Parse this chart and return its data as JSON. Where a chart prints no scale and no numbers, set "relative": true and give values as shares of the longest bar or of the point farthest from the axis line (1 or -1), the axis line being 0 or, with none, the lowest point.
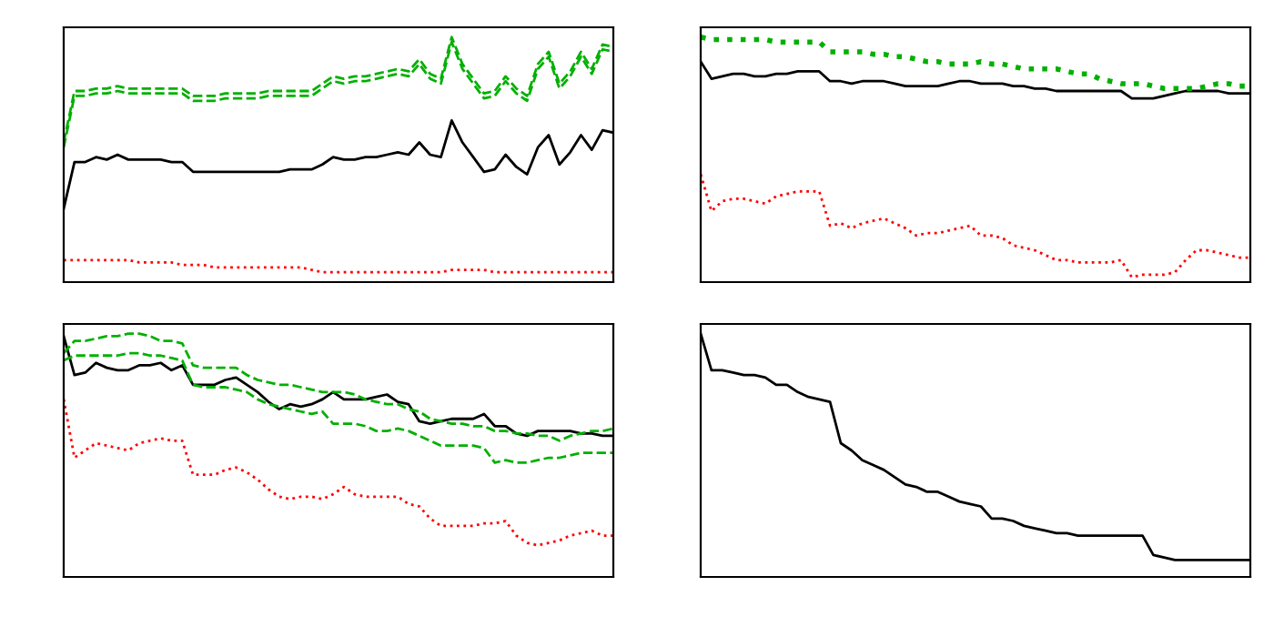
{
  "chart_data": [
    {
      "type": "line",
      "relative": true,
      "legend": false,
      "tick_labels": false,
      "categories": [
        null,
        null,
        null,
        null,
        null,
        null,
        null,
        null,
        null,
        null,
        null,
        null,
        null,
        null,
        null,
        null,
        null,
        null,
        null,
        null,
        null,
        null,
        null,
        null,
        null,
        null,
        null,
        null,
        null,
        null,
        null,
        null,
        null,
        null,
        null,
        null,
        null,
        null,
        null,
        null,
        null,
        null,
        null,
        null,
        null,
        null,
        null,
        null,
        null,
        null,
        null,
        null
      ],
      "series": [
        {
          "color": "#000000",
          "line_style": "solid",
          "values": [
            0.3,
            0.49,
            0.49,
            0.51,
            0.5,
            0.52,
            0.5,
            0.5,
            0.5,
            0.5,
            0.49,
            0.49,
            0.45,
            0.45,
            0.45,
            0.45,
            0.45,
            0.45,
            0.45,
            0.45,
            0.45,
            0.46,
            0.46,
            0.46,
            0.48,
            0.51,
            0.5,
            0.5,
            0.51,
            0.51,
            0.52,
            0.53,
            0.52,
            0.57,
            0.52,
            0.51,
            0.66,
            0.57,
            0.51,
            0.45,
            0.46,
            0.52,
            0.47,
            0.44,
            0.55,
            0.6,
            0.48,
            0.53,
            0.6,
            0.54,
            0.62,
            0.61
          ]
        },
        {
          "color": "#00b000",
          "line_style": "dashed",
          "values": [
            0.57,
            0.78,
            0.78,
            0.79,
            0.79,
            0.8,
            0.79,
            0.79,
            0.79,
            0.79,
            0.79,
            0.79,
            0.76,
            0.76,
            0.76,
            0.77,
            0.77,
            0.77,
            0.77,
            0.78,
            0.78,
            0.78,
            0.78,
            0.78,
            0.81,
            0.84,
            0.83,
            0.84,
            0.84,
            0.85,
            0.86,
            0.87,
            0.86,
            0.91,
            0.85,
            0.83,
            1.0,
            0.89,
            0.83,
            0.77,
            0.78,
            0.84,
            0.79,
            0.76,
            0.89,
            0.94,
            0.81,
            0.86,
            0.94,
            0.87,
            0.97,
            0.96
          ]
        },
        {
          "color": "#00b000",
          "line_style": "dashed",
          "values": [
            0.55,
            0.76,
            0.76,
            0.77,
            0.77,
            0.78,
            0.77,
            0.77,
            0.77,
            0.77,
            0.77,
            0.77,
            0.74,
            0.74,
            0.74,
            0.75,
            0.75,
            0.75,
            0.75,
            0.76,
            0.76,
            0.76,
            0.76,
            0.76,
            0.79,
            0.82,
            0.81,
            0.82,
            0.82,
            0.83,
            0.84,
            0.85,
            0.84,
            0.89,
            0.83,
            0.81,
            0.98,
            0.87,
            0.81,
            0.75,
            0.76,
            0.82,
            0.77,
            0.74,
            0.87,
            0.92,
            0.79,
            0.84,
            0.92,
            0.85,
            0.95,
            0.94
          ]
        },
        {
          "color": "#ff0000",
          "line_style": "dotted",
          "values": [
            0.09,
            0.09,
            0.09,
            0.09,
            0.09,
            0.09,
            0.09,
            0.08,
            0.08,
            0.08,
            0.08,
            0.07,
            0.07,
            0.07,
            0.06,
            0.06,
            0.06,
            0.06,
            0.06,
            0.06,
            0.06,
            0.06,
            0.06,
            0.05,
            0.04,
            0.04,
            0.04,
            0.04,
            0.04,
            0.04,
            0.04,
            0.04,
            0.04,
            0.04,
            0.04,
            0.04,
            0.05,
            0.05,
            0.05,
            0.05,
            0.04,
            0.04,
            0.04,
            0.04,
            0.04,
            0.04,
            0.04,
            0.04,
            0.04,
            0.04,
            0.04,
            0.04
          ]
        }
      ]
    },
    {
      "type": "line",
      "relative": true,
      "legend": false,
      "tick_labels": false,
      "categories": [
        null,
        null,
        null,
        null,
        null,
        null,
        null,
        null,
        null,
        null,
        null,
        null,
        null,
        null,
        null,
        null,
        null,
        null,
        null,
        null,
        null,
        null,
        null,
        null,
        null,
        null,
        null,
        null,
        null,
        null,
        null,
        null,
        null,
        null,
        null,
        null,
        null,
        null,
        null,
        null,
        null,
        null,
        null,
        null,
        null,
        null,
        null,
        null,
        null,
        null,
        null,
        null
      ],
      "series": [
        {
          "color": "#000000",
          "line_style": "solid",
          "values": [
            0.9,
            0.83,
            0.84,
            0.85,
            0.85,
            0.84,
            0.84,
            0.85,
            0.85,
            0.86,
            0.86,
            0.86,
            0.82,
            0.82,
            0.81,
            0.82,
            0.82,
            0.82,
            0.81,
            0.8,
            0.8,
            0.8,
            0.8,
            0.81,
            0.82,
            0.82,
            0.81,
            0.81,
            0.81,
            0.8,
            0.8,
            0.79,
            0.79,
            0.78,
            0.78,
            0.78,
            0.78,
            0.78,
            0.78,
            0.78,
            0.75,
            0.75,
            0.75,
            0.76,
            0.77,
            0.78,
            0.78,
            0.78,
            0.78,
            0.77,
            0.77,
            0.77
          ]
        },
        {
          "color": "#00b000",
          "line_style": "dotted",
          "values": [
            1.0,
            0.99,
            0.99,
            0.99,
            0.99,
            0.99,
            0.99,
            0.98,
            0.98,
            0.98,
            0.98,
            0.98,
            0.94,
            0.94,
            0.94,
            0.94,
            0.93,
            0.93,
            0.92,
            0.92,
            0.91,
            0.9,
            0.9,
            0.89,
            0.89,
            0.89,
            0.9,
            0.89,
            0.89,
            0.88,
            0.87,
            0.87,
            0.87,
            0.87,
            0.86,
            0.85,
            0.85,
            0.83,
            0.82,
            0.81,
            0.81,
            0.81,
            0.8,
            0.79,
            0.79,
            0.79,
            0.79,
            0.8,
            0.81,
            0.81,
            0.8,
            0.8
          ]
        },
        {
          "color": "#ff0000",
          "line_style": "dotted",
          "values": [
            0.44,
            0.29,
            0.33,
            0.34,
            0.34,
            0.33,
            0.32,
            0.35,
            0.36,
            0.37,
            0.37,
            0.37,
            0.23,
            0.24,
            0.22,
            0.24,
            0.25,
            0.26,
            0.24,
            0.22,
            0.19,
            0.2,
            0.2,
            0.21,
            0.22,
            0.23,
            0.19,
            0.19,
            0.18,
            0.15,
            0.14,
            0.13,
            0.11,
            0.09,
            0.09,
            0.08,
            0.08,
            0.08,
            0.08,
            0.09,
            0.02,
            0.03,
            0.03,
            0.03,
            0.04,
            0.09,
            0.13,
            0.13,
            0.12,
            0.11,
            0.1,
            0.1
          ]
        }
      ]
    },
    {
      "type": "line",
      "relative": true,
      "legend": false,
      "tick_labels": false,
      "categories": [
        null,
        null,
        null,
        null,
        null,
        null,
        null,
        null,
        null,
        null,
        null,
        null,
        null,
        null,
        null,
        null,
        null,
        null,
        null,
        null,
        null,
        null,
        null,
        null,
        null,
        null,
        null,
        null,
        null,
        null,
        null,
        null,
        null,
        null,
        null,
        null,
        null,
        null,
        null,
        null,
        null,
        null,
        null,
        null,
        null,
        null,
        null,
        null,
        null,
        null,
        null,
        null
      ],
      "series": [
        {
          "color": "#000000",
          "line_style": "solid",
          "values": [
            0.99,
            0.83,
            0.84,
            0.88,
            0.86,
            0.85,
            0.85,
            0.87,
            0.87,
            0.88,
            0.85,
            0.87,
            0.79,
            0.79,
            0.79,
            0.81,
            0.82,
            0.79,
            0.76,
            0.72,
            0.69,
            0.71,
            0.7,
            0.71,
            0.73,
            0.76,
            0.73,
            0.73,
            0.73,
            0.74,
            0.75,
            0.72,
            0.71,
            0.64,
            0.63,
            0.64,
            0.65,
            0.65,
            0.65,
            0.67,
            0.62,
            0.62,
            0.59,
            0.58,
            0.6,
            0.6,
            0.6,
            0.6,
            0.59,
            0.59,
            0.58,
            0.58
          ]
        },
        {
          "color": "#00b000",
          "line_style": "dashed",
          "values": [
            0.92,
            0.97,
            0.97,
            0.98,
            0.99,
            0.99,
            1.0,
            1.0,
            0.99,
            0.97,
            0.97,
            0.96,
            0.87,
            0.86,
            0.86,
            0.86,
            0.86,
            0.83,
            0.81,
            0.8,
            0.79,
            0.79,
            0.78,
            0.77,
            0.76,
            0.76,
            0.76,
            0.75,
            0.73,
            0.72,
            0.71,
            0.71,
            0.69,
            0.68,
            0.65,
            0.64,
            0.63,
            0.63,
            0.62,
            0.62,
            0.6,
            0.6,
            0.59,
            0.59,
            0.58,
            0.58,
            0.56,
            0.58,
            0.59,
            0.6,
            0.6,
            0.61
          ]
        },
        {
          "color": "#00b000",
          "line_style": "dashed",
          "values": [
            0.89,
            0.91,
            0.91,
            0.91,
            0.91,
            0.91,
            0.92,
            0.92,
            0.91,
            0.91,
            0.9,
            0.89,
            0.79,
            0.78,
            0.78,
            0.78,
            0.77,
            0.76,
            0.73,
            0.71,
            0.7,
            0.69,
            0.68,
            0.67,
            0.68,
            0.63,
            0.63,
            0.63,
            0.62,
            0.6,
            0.6,
            0.61,
            0.6,
            0.58,
            0.56,
            0.54,
            0.54,
            0.54,
            0.54,
            0.53,
            0.47,
            0.48,
            0.47,
            0.47,
            0.48,
            0.49,
            0.49,
            0.5,
            0.51,
            0.51,
            0.51,
            0.51
          ]
        },
        {
          "color": "#ff0000",
          "line_style": "dotted",
          "values": [
            0.73,
            0.49,
            0.52,
            0.55,
            0.54,
            0.53,
            0.52,
            0.55,
            0.56,
            0.57,
            0.56,
            0.56,
            0.42,
            0.42,
            0.42,
            0.44,
            0.45,
            0.43,
            0.4,
            0.36,
            0.33,
            0.32,
            0.33,
            0.33,
            0.32,
            0.34,
            0.37,
            0.34,
            0.33,
            0.33,
            0.33,
            0.33,
            0.3,
            0.29,
            0.24,
            0.21,
            0.21,
            0.21,
            0.21,
            0.22,
            0.22,
            0.23,
            0.17,
            0.14,
            0.13,
            0.14,
            0.15,
            0.17,
            0.18,
            0.19,
            0.17,
            0.17
          ]
        }
      ]
    },
    {
      "type": "line",
      "relative": true,
      "legend": false,
      "tick_labels": false,
      "categories": [
        null,
        null,
        null,
        null,
        null,
        null,
        null,
        null,
        null,
        null,
        null,
        null,
        null,
        null,
        null,
        null,
        null,
        null,
        null,
        null,
        null,
        null,
        null,
        null,
        null,
        null,
        null,
        null,
        null,
        null,
        null,
        null,
        null,
        null,
        null,
        null,
        null,
        null,
        null,
        null,
        null,
        null,
        null,
        null,
        null,
        null,
        null,
        null,
        null,
        null,
        null,
        null
      ],
      "series": [
        {
          "color": "#000000",
          "line_style": "solid",
          "values": [
            1.0,
            0.85,
            0.85,
            0.84,
            0.83,
            0.83,
            0.82,
            0.79,
            0.79,
            0.76,
            0.74,
            0.73,
            0.72,
            0.55,
            0.52,
            0.48,
            0.46,
            0.44,
            0.41,
            0.38,
            0.37,
            0.35,
            0.35,
            0.33,
            0.31,
            0.3,
            0.29,
            0.24,
            0.24,
            0.23,
            0.21,
            0.2,
            0.19,
            0.18,
            0.18,
            0.17,
            0.17,
            0.17,
            0.17,
            0.17,
            0.17,
            0.17,
            0.09,
            0.08,
            0.07,
            0.07,
            0.07,
            0.07,
            0.07,
            0.07,
            0.07,
            0.07
          ]
        }
      ]
    }
  ]
}
